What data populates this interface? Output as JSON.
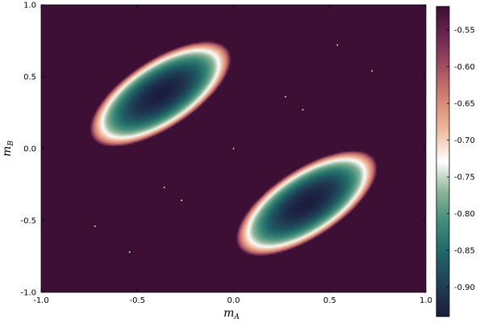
{
  "chart_data": {
    "type": "heatmap",
    "title": "",
    "xlabel": "m",
    "xlabel_subscript": "A",
    "ylabel": "m",
    "ylabel_subscript": "B",
    "xlim": [
      -1.0,
      1.0
    ],
    "ylim": [
      -1.0,
      1.0
    ],
    "x_ticks": [
      -1.0,
      -0.5,
      0.0,
      0.5,
      1.0
    ],
    "x_tick_labels": [
      "-1.0",
      "-0.5",
      "0.0",
      "0.5",
      "1.0"
    ],
    "y_ticks": [
      -1.0,
      -0.5,
      0.0,
      0.5,
      1.0
    ],
    "y_tick_labels": [
      "-1.0",
      "-0.5",
      "0.0",
      "0.5",
      "1.0"
    ],
    "grid": false,
    "colorbar": {
      "range": [
        -0.94,
        -0.518
      ],
      "ticks": [
        -0.9,
        -0.85,
        -0.8,
        -0.75,
        -0.7,
        -0.65,
        -0.6,
        -0.55
      ],
      "tick_labels": [
        "-0.90",
        "-0.85",
        "-0.80",
        "-0.75",
        "-0.70",
        "-0.65",
        "-0.60",
        "-0.55"
      ],
      "colormap": [
        "#1b1d3f",
        "#1f3e55",
        "#1f6567",
        "#3d8a78",
        "#8ab394",
        "#ffffff",
        "#eebb9c",
        "#d68474",
        "#a55062",
        "#6d2750",
        "#3c0e34"
      ],
      "clip_color": "#3c0e34"
    },
    "wells": [
      {
        "center": [
          -0.38,
          0.38
        ],
        "depth": -0.94
      },
      {
        "center": [
          0.38,
          -0.38
        ],
        "depth": -0.94
      }
    ],
    "background_value": -0.52,
    "points": [
      {
        "x": 0.54,
        "y": 0.72
      },
      {
        "x": 0.72,
        "y": 0.54
      },
      {
        "x": 0.27,
        "y": 0.36
      },
      {
        "x": 0.36,
        "y": 0.27
      },
      {
        "x": 0.0,
        "y": 0.0
      },
      {
        "x": -0.36,
        "y": -0.27
      },
      {
        "x": -0.27,
        "y": -0.36
      },
      {
        "x": -0.72,
        "y": -0.54
      },
      {
        "x": -0.54,
        "y": -0.72
      }
    ]
  }
}
